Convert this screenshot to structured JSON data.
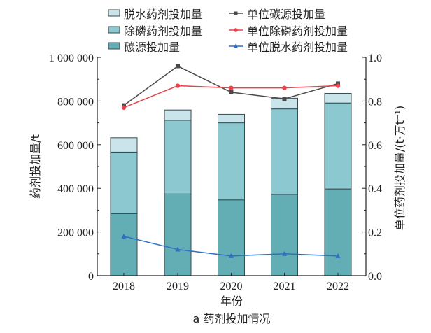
{
  "chart_data": {
    "type": "bar+line",
    "title": "",
    "caption": "a 药剂投加情况",
    "xlabel": "年份",
    "ylabel_left": "药剂投加量/t",
    "ylabel_right": "单位药剂投加量/(t·万t⁻¹)",
    "categories": [
      "2018",
      "2019",
      "2020",
      "2021",
      "2022"
    ],
    "ylim_left": [
      0,
      1000000
    ],
    "ylim_right": [
      0.0,
      1.0
    ],
    "yticks_left": [
      "0",
      "200 000",
      "400 000",
      "600 000",
      "800 000",
      "1 000 000"
    ],
    "yticks_right": [
      "0.0",
      "0.2",
      "0.4",
      "0.6",
      "0.8",
      "1.0"
    ],
    "grid": false,
    "legend_position": "top",
    "stacked_bars": [
      {
        "name": "碳源投加量",
        "color": "#63aeb5",
        "values": [
          284000,
          374000,
          347000,
          372000,
          397000
        ]
      },
      {
        "name": "除磷药剂投加量",
        "color": "#8cc8cf",
        "values": [
          282000,
          338000,
          353000,
          392000,
          394000
        ]
      },
      {
        "name": "脱水药剂投加量",
        "color": "#c9e4ea",
        "values": [
          66000,
          47000,
          39000,
          49000,
          44000
        ]
      }
    ],
    "lines": [
      {
        "name": "单位碳源投加量",
        "color": "#4a4a4a",
        "marker": "square",
        "axis": "right",
        "values": [
          0.78,
          0.96,
          0.84,
          0.81,
          0.88
        ]
      },
      {
        "name": "单位除磷药剂投加量",
        "color": "#e8424a",
        "marker": "circle",
        "axis": "right",
        "values": [
          0.77,
          0.87,
          0.86,
          0.86,
          0.87
        ]
      },
      {
        "name": "单位脱水药剂投加量",
        "color": "#2f6fc2",
        "marker": "triangle",
        "axis": "right",
        "values": [
          0.18,
          0.12,
          0.09,
          0.1,
          0.09
        ]
      }
    ],
    "legend": {
      "left_column": [
        "脱水药剂投加量",
        "除磷药剂投加量",
        "碳源投加量"
      ],
      "right_column": [
        "单位碳源投加量",
        "单位除磷药剂投加量",
        "单位脱水药剂投加量"
      ]
    }
  }
}
